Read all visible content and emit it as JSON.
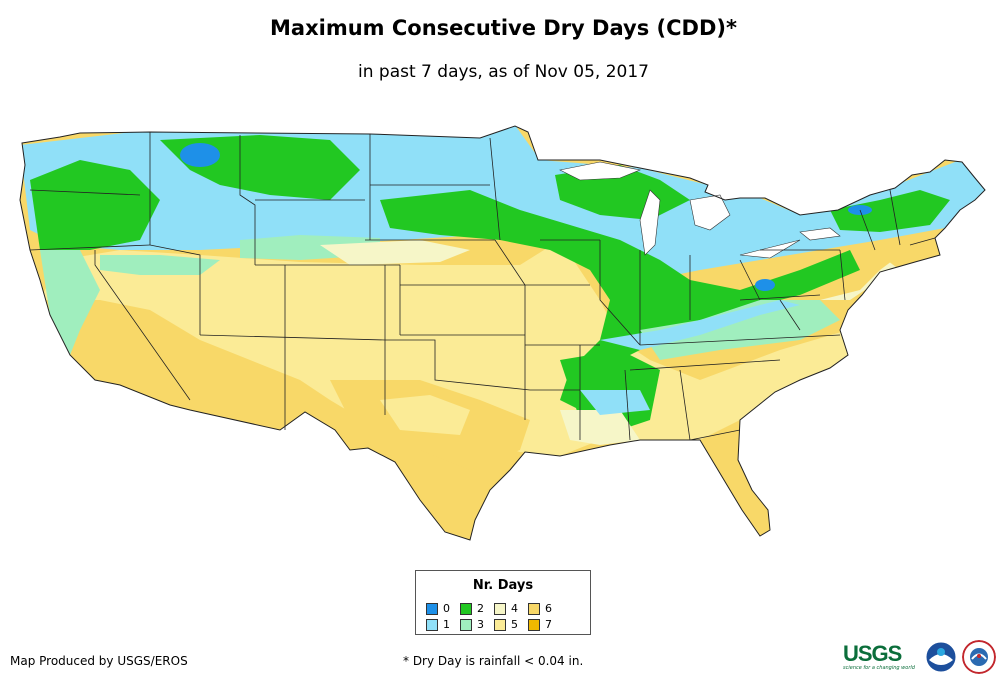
{
  "title": "Maximum Consecutive Dry Days (CDD)*",
  "subtitle": "in past 7 days, as of Nov 05, 2017",
  "legend": {
    "title": "Nr. Days",
    "items": [
      {
        "label": "0",
        "color": "#1e90e8"
      },
      {
        "label": "1",
        "color": "#90e0f8"
      },
      {
        "label": "2",
        "color": "#22c822"
      },
      {
        "label": "3",
        "color": "#a0eebe"
      },
      {
        "label": "4",
        "color": "#f6f6c8"
      },
      {
        "label": "5",
        "color": "#fbeb96"
      },
      {
        "label": "6",
        "color": "#f8d868"
      },
      {
        "label": "7",
        "color": "#f0b800"
      }
    ]
  },
  "footer": {
    "credit": "Map Produced by USGS/EROS",
    "footnote": "* Dry Day is rainfall < 0.04 in.",
    "usgs_logo": "USGS",
    "usgs_tagline": "science for a changing world"
  },
  "logos": [
    "usgs-logo",
    "noaa-logo",
    "nws-logo"
  ]
}
